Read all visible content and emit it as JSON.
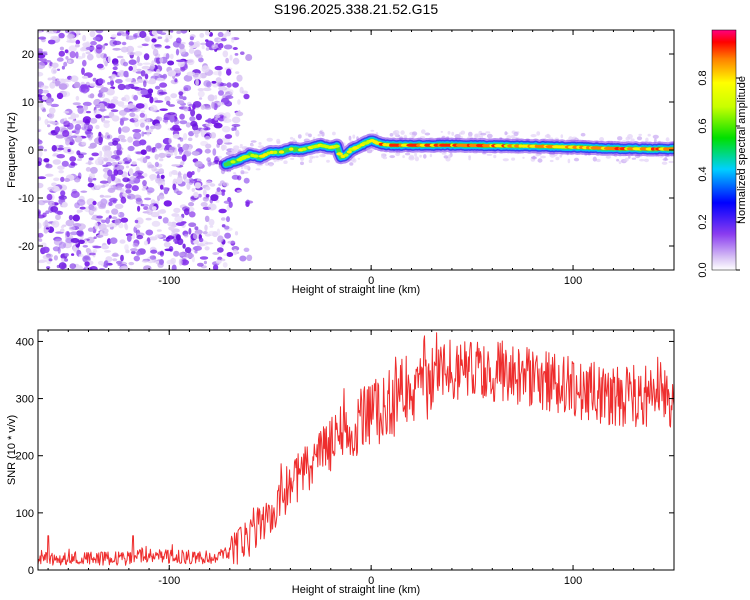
{
  "title": "S196.2025.338.21.52.G15",
  "chart_data": [
    {
      "type": "heatmap",
      "name": "spectrogram",
      "xlabel": "Height of straight line (km)",
      "ylabel": "Frequency (Hz)",
      "xlim": [
        -165,
        150
      ],
      "ylim": [
        -25,
        25
      ],
      "xticks": [
        -100,
        0,
        100
      ],
      "yticks": [
        -20,
        -10,
        0,
        10,
        20
      ],
      "noise_region": [
        -165,
        -65
      ],
      "ridge": {
        "x": [
          -72,
          -65,
          -60,
          -55,
          -50,
          -45,
          -40,
          -35,
          -30,
          -25,
          -20,
          -17,
          -15,
          -12,
          -10,
          -5,
          0,
          5,
          10,
          20,
          40,
          60,
          80,
          100,
          120,
          140,
          150
        ],
        "y": [
          -3,
          -2,
          -1,
          -1.5,
          -0.5,
          -0.5,
          0.2,
          0,
          0.5,
          1,
          0.5,
          0.8,
          -1.5,
          -1,
          0,
          1,
          2,
          1.2,
          1,
          1,
          1,
          0.9,
          0.8,
          0.6,
          0.3,
          0.2,
          0.2
        ]
      },
      "colorbar": {
        "label": "Normalized spectral amplitude",
        "range": [
          0,
          1
        ],
        "ticks": [
          "0.0",
          "0.2",
          "0.4",
          "0.6",
          "0.8"
        ]
      }
    },
    {
      "type": "line",
      "name": "snr",
      "xlabel": "Height of straight line (km)",
      "ylabel": "SNR (10 * v/v)",
      "xlim": [
        -165,
        150
      ],
      "ylim": [
        0,
        420
      ],
      "xticks": [
        -100,
        0,
        100
      ],
      "yticks": [
        0,
        100,
        200,
        300,
        400
      ],
      "color": "#ee2d2d",
      "envelope": {
        "x": [
          -165,
          -120,
          -118,
          -80,
          -70,
          -60,
          -50,
          -40,
          -30,
          -20,
          -10,
          0,
          10,
          20,
          30,
          40,
          50,
          60,
          70,
          80,
          90,
          100,
          110,
          120,
          130,
          140,
          150
        ],
        "y": [
          20,
          20,
          25,
          22,
          30,
          60,
          100,
          150,
          180,
          220,
          250,
          270,
          295,
          320,
          340,
          350,
          352,
          350,
          345,
          335,
          330,
          320,
          310,
          300,
          305,
          305,
          305
        ]
      }
    }
  ]
}
